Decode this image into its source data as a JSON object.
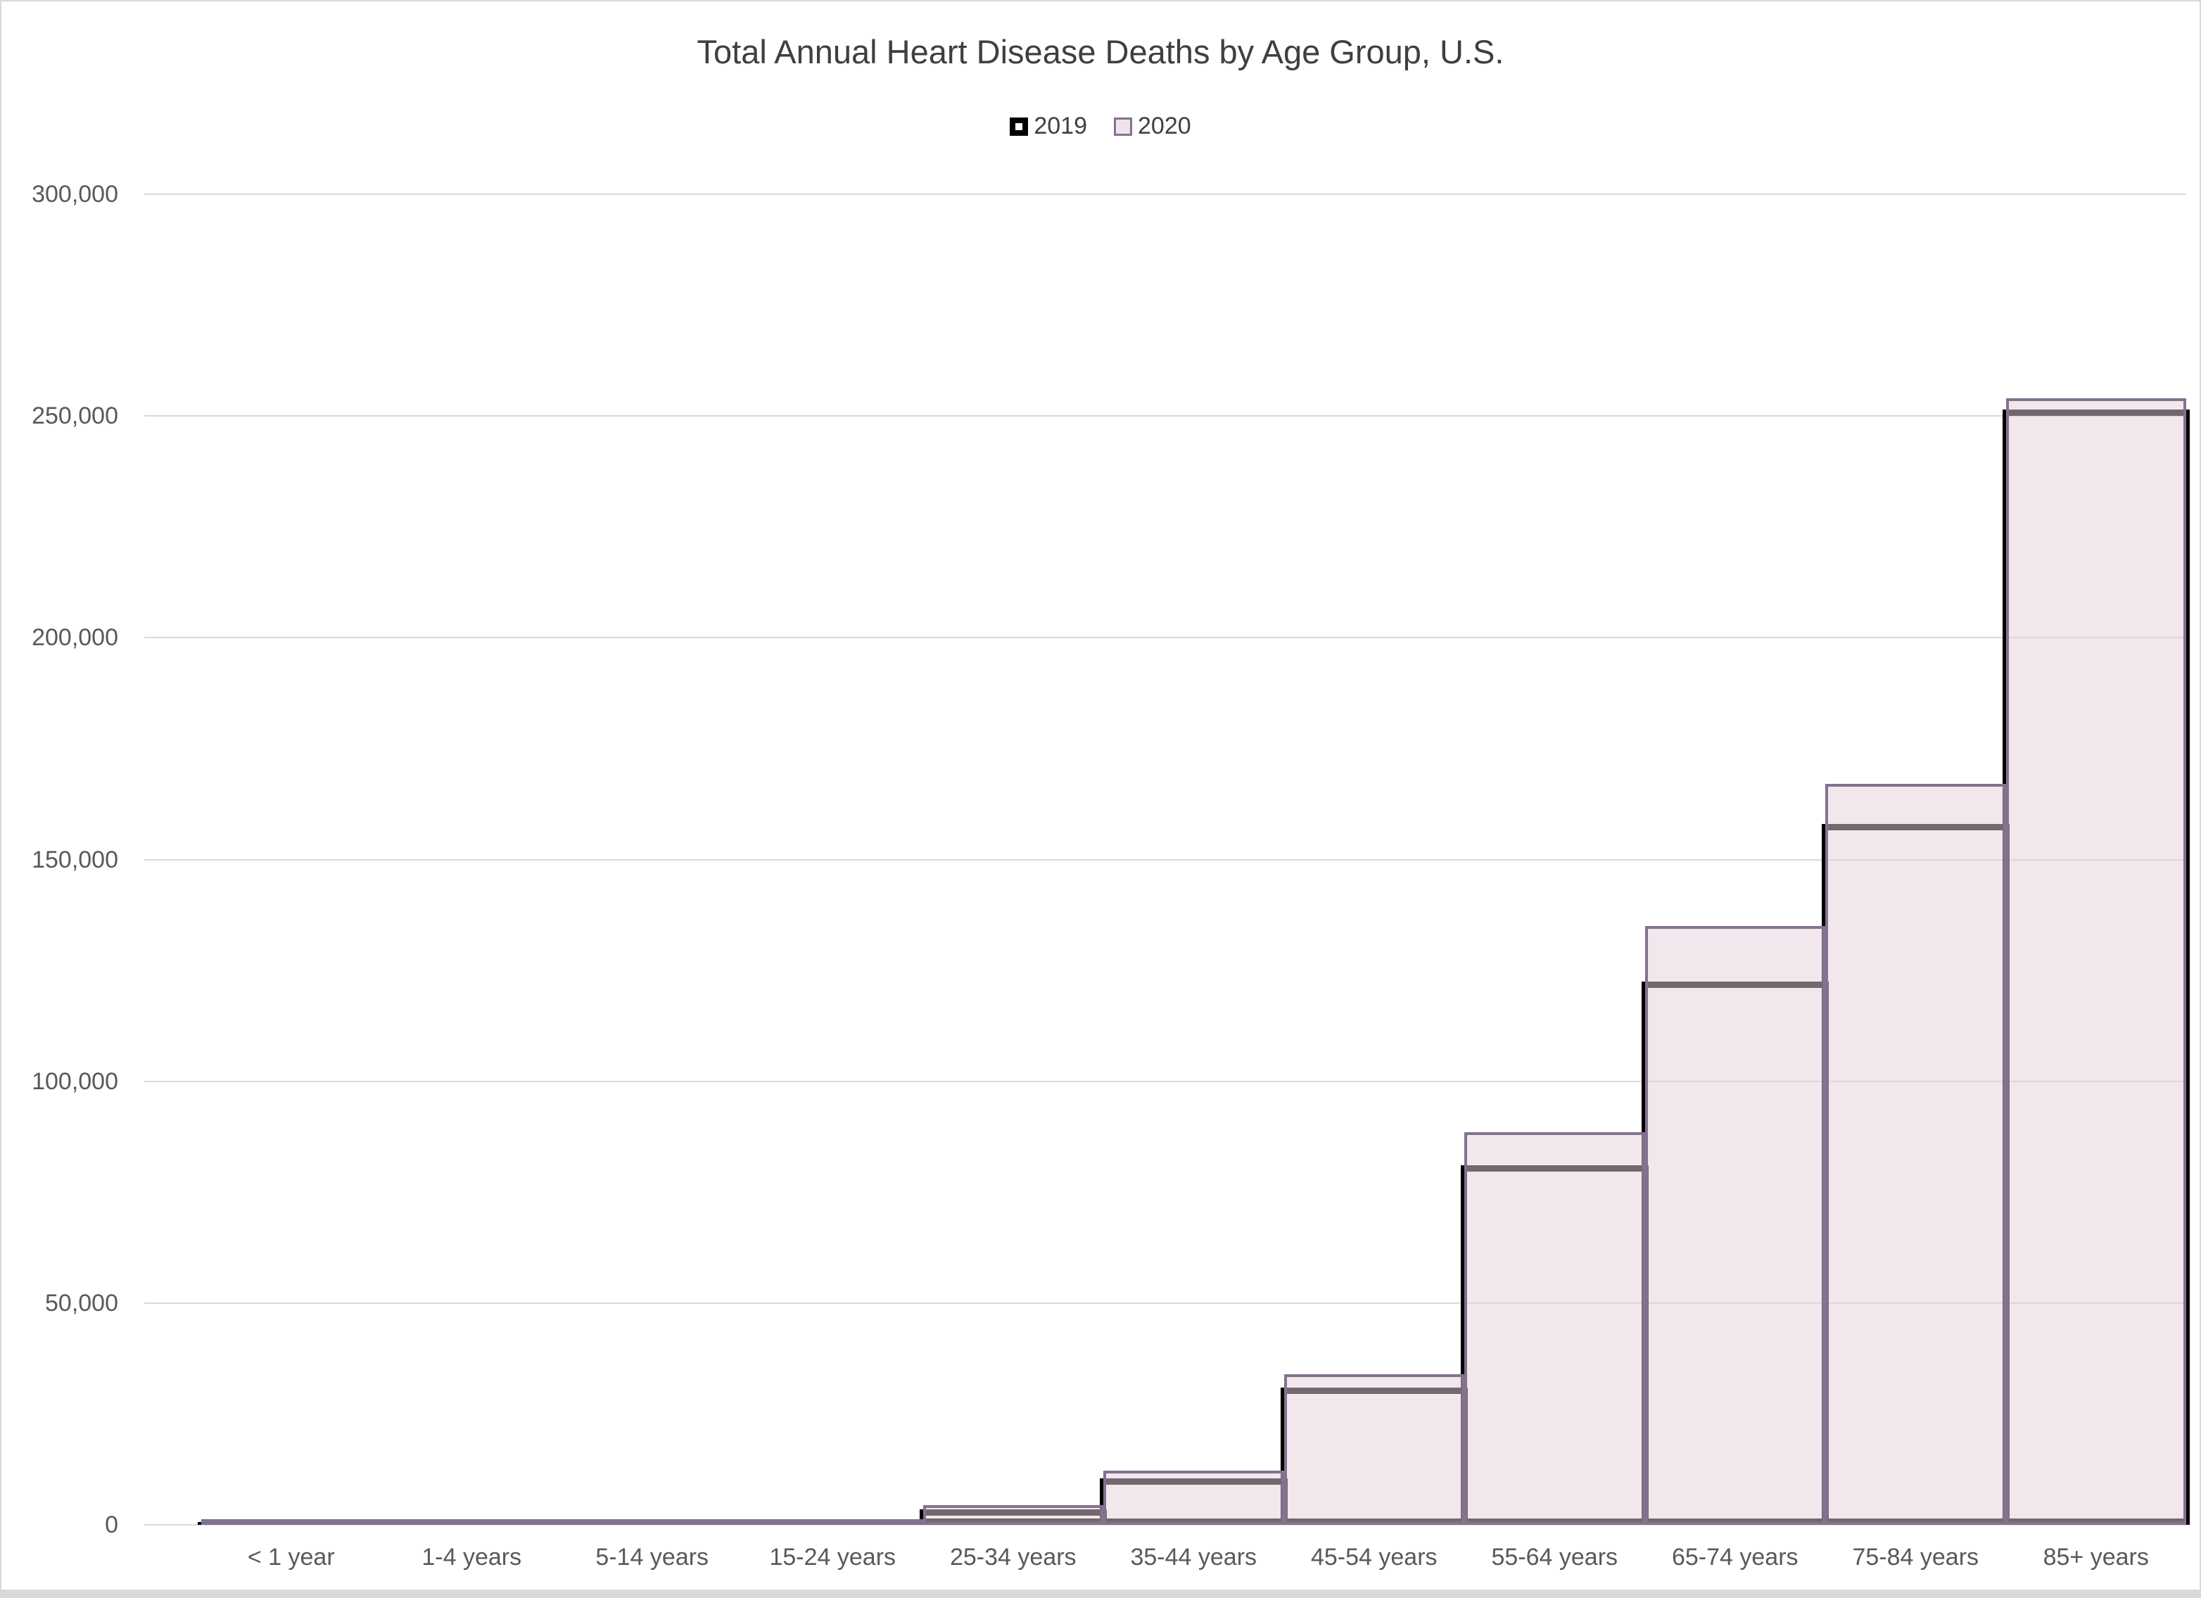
{
  "window": {
    "background": "#ffffff",
    "frame_border_color": "#d9d9d9"
  },
  "chart_data": {
    "type": "bar",
    "title": "Total Annual Heart Disease Deaths by Age Group, U.S.",
    "xlabel": "",
    "ylabel": "",
    "categories": [
      "< 1 year",
      "1-4 years",
      "5-14 years",
      "15-24 years",
      "25-34 years",
      "35-44 years",
      "45-54 years",
      "55-64 years",
      "65-74 years",
      "75-84 years",
      "85+ years"
    ],
    "series": [
      {
        "name": "2019",
        "values": [
          500,
          250,
          500,
          1050,
          3500,
          10400,
          31000,
          81000,
          122500,
          158000,
          251500
        ],
        "fill": "none",
        "border_color": "#000000"
      },
      {
        "name": "2020",
        "values": [
          500,
          250,
          550,
          1200,
          4400,
          12200,
          34000,
          88500,
          135000,
          167000,
          254000
        ],
        "fill": "#f2e7ed",
        "fill_rgba": "rgba(229,207,219,0.5)",
        "border_color": "#84718f"
      }
    ],
    "ylim": [
      0,
      300000
    ],
    "ytick_step": 50000,
    "ytick_labels": [
      "0",
      "50,000",
      "100,000",
      "150,000",
      "200,000",
      "250,000",
      "300,000"
    ],
    "grid": true,
    "gridline_color": "#d9d9d9",
    "legend_position": "top-center",
    "bar_overlap": "100%",
    "notes": "2020 bars translucent pink with purple border drawn over outline-only black 2019 bars"
  },
  "text_colors": {
    "title": "#3f3f3f",
    "axis_labels": "#595959",
    "legend": "#404040"
  }
}
